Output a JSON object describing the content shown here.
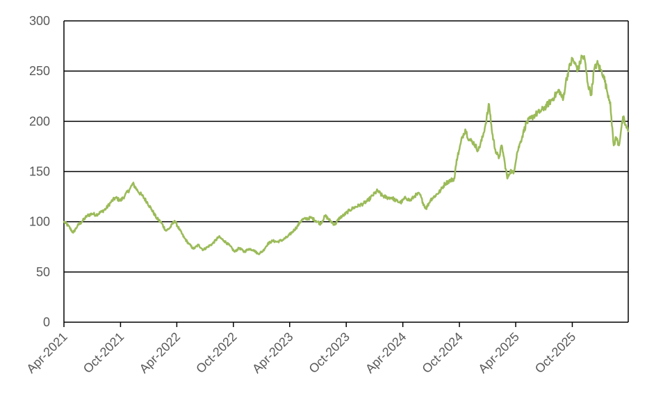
{
  "chart_data": {
    "type": "line",
    "title": "",
    "xlabel": "",
    "ylabel": "",
    "ylim": [
      0,
      300
    ],
    "yticks": [
      0,
      50,
      100,
      150,
      200,
      250,
      300
    ],
    "xlim": [
      "2021-04-01",
      "2026-03-31"
    ],
    "xticks": [
      "Apr-2021",
      "Oct-2021",
      "Apr-2022",
      "Oct-2022",
      "Apr-2023",
      "Oct-2023",
      "Apr-2024",
      "Oct-2024",
      "Apr-2025",
      "Oct-2025"
    ],
    "grid": "horizontal",
    "legend": "none",
    "line_color": "#9BBB59",
    "grid_color": "#000000",
    "series": [
      {
        "values": [
          [
            "2021-04-01",
            100
          ],
          [
            "2021-04-15",
            96
          ],
          [
            "2021-05-01",
            89
          ],
          [
            "2021-05-15",
            96
          ],
          [
            "2021-06-01",
            101
          ],
          [
            "2021-06-15",
            106
          ],
          [
            "2021-07-01",
            108
          ],
          [
            "2021-07-15",
            107
          ],
          [
            "2021-08-01",
            110
          ],
          [
            "2021-08-15",
            113
          ],
          [
            "2021-09-01",
            120
          ],
          [
            "2021-09-15",
            124
          ],
          [
            "2021-10-01",
            121
          ],
          [
            "2021-10-15",
            126
          ],
          [
            "2021-11-01",
            133
          ],
          [
            "2021-11-10",
            138
          ],
          [
            "2021-11-25",
            131
          ],
          [
            "2021-12-10",
            126
          ],
          [
            "2021-12-25",
            120
          ],
          [
            "2022-01-10",
            112
          ],
          [
            "2022-01-25",
            104
          ],
          [
            "2022-02-10",
            99
          ],
          [
            "2022-02-25",
            91
          ],
          [
            "2022-03-10",
            94
          ],
          [
            "2022-03-25",
            101
          ],
          [
            "2022-04-10",
            92
          ],
          [
            "2022-04-25",
            84
          ],
          [
            "2022-05-10",
            78
          ],
          [
            "2022-05-25",
            73
          ],
          [
            "2022-06-10",
            77
          ],
          [
            "2022-06-25",
            72
          ],
          [
            "2022-07-10",
            75
          ],
          [
            "2022-07-25",
            78
          ],
          [
            "2022-08-15",
            85
          ],
          [
            "2022-09-01",
            81
          ],
          [
            "2022-09-20",
            76
          ],
          [
            "2022-10-05",
            70
          ],
          [
            "2022-10-20",
            74
          ],
          [
            "2022-11-05",
            70
          ],
          [
            "2022-11-20",
            73
          ],
          [
            "2022-12-05",
            72
          ],
          [
            "2022-12-20",
            68
          ],
          [
            "2023-01-05",
            71
          ],
          [
            "2023-01-20",
            78
          ],
          [
            "2023-02-05",
            81
          ],
          [
            "2023-02-20",
            80
          ],
          [
            "2023-03-10",
            82
          ],
          [
            "2023-03-25",
            85
          ],
          [
            "2023-04-10",
            90
          ],
          [
            "2023-04-25",
            95
          ],
          [
            "2023-05-10",
            102
          ],
          [
            "2023-05-25",
            103
          ],
          [
            "2023-06-10",
            104
          ],
          [
            "2023-06-25",
            101
          ],
          [
            "2023-07-10",
            98
          ],
          [
            "2023-07-25",
            106
          ],
          [
            "2023-08-10",
            101
          ],
          [
            "2023-08-25",
            97
          ],
          [
            "2023-09-10",
            104
          ],
          [
            "2023-09-25",
            107
          ],
          [
            "2023-10-10",
            111
          ],
          [
            "2023-10-25",
            114
          ],
          [
            "2023-11-10",
            116
          ],
          [
            "2023-11-25",
            118
          ],
          [
            "2023-12-10",
            121
          ],
          [
            "2023-12-25",
            126
          ],
          [
            "2024-01-10",
            131
          ],
          [
            "2024-01-25",
            126
          ],
          [
            "2024-02-10",
            124
          ],
          [
            "2024-02-25",
            124
          ],
          [
            "2024-03-10",
            121
          ],
          [
            "2024-03-25",
            119
          ],
          [
            "2024-04-10",
            124
          ],
          [
            "2024-04-25",
            121
          ],
          [
            "2024-05-10",
            126
          ],
          [
            "2024-05-25",
            128
          ],
          [
            "2024-06-05",
            119
          ],
          [
            "2024-06-15",
            113
          ],
          [
            "2024-06-30",
            122
          ],
          [
            "2024-07-15",
            126
          ],
          [
            "2024-08-01",
            131
          ],
          [
            "2024-08-15",
            138
          ],
          [
            "2024-09-01",
            141
          ],
          [
            "2024-09-15",
            143
          ],
          [
            "2024-09-22",
            162
          ],
          [
            "2024-10-01",
            172
          ],
          [
            "2024-10-10",
            184
          ],
          [
            "2024-10-20",
            192
          ],
          [
            "2024-11-01",
            182
          ],
          [
            "2024-11-15",
            179
          ],
          [
            "2024-12-01",
            171
          ],
          [
            "2024-12-15",
            184
          ],
          [
            "2024-12-25",
            198
          ],
          [
            "2025-01-05",
            217
          ],
          [
            "2025-01-15",
            188
          ],
          [
            "2025-01-25",
            172
          ],
          [
            "2025-02-05",
            163
          ],
          [
            "2025-02-15",
            176
          ],
          [
            "2025-02-25",
            158
          ],
          [
            "2025-03-05",
            143
          ],
          [
            "2025-03-15",
            151
          ],
          [
            "2025-03-25",
            148
          ],
          [
            "2025-04-05",
            168
          ],
          [
            "2025-04-15",
            178
          ],
          [
            "2025-04-25",
            188
          ],
          [
            "2025-05-05",
            198
          ],
          [
            "2025-05-20",
            203
          ],
          [
            "2025-06-05",
            207
          ],
          [
            "2025-06-20",
            210
          ],
          [
            "2025-07-05",
            214
          ],
          [
            "2025-07-20",
            219
          ],
          [
            "2025-08-05",
            225
          ],
          [
            "2025-08-20",
            231
          ],
          [
            "2025-09-01",
            221
          ],
          [
            "2025-09-10",
            239
          ],
          [
            "2025-09-20",
            252
          ],
          [
            "2025-10-01",
            262
          ],
          [
            "2025-10-10",
            257
          ],
          [
            "2025-10-20",
            251
          ],
          [
            "2025-11-01",
            265
          ],
          [
            "2025-11-10",
            262
          ],
          [
            "2025-11-20",
            238
          ],
          [
            "2025-12-01",
            226
          ],
          [
            "2025-12-10",
            250
          ],
          [
            "2025-12-20",
            258
          ],
          [
            "2026-01-01",
            251
          ],
          [
            "2026-01-10",
            246
          ],
          [
            "2026-01-20",
            232
          ],
          [
            "2026-02-01",
            219
          ],
          [
            "2026-02-06",
            196
          ],
          [
            "2026-02-12",
            176
          ],
          [
            "2026-02-20",
            184
          ],
          [
            "2026-03-01",
            176
          ],
          [
            "2026-03-08",
            192
          ],
          [
            "2026-03-15",
            204
          ],
          [
            "2026-03-22",
            196
          ],
          [
            "2026-03-31",
            190
          ]
        ]
      }
    ]
  }
}
